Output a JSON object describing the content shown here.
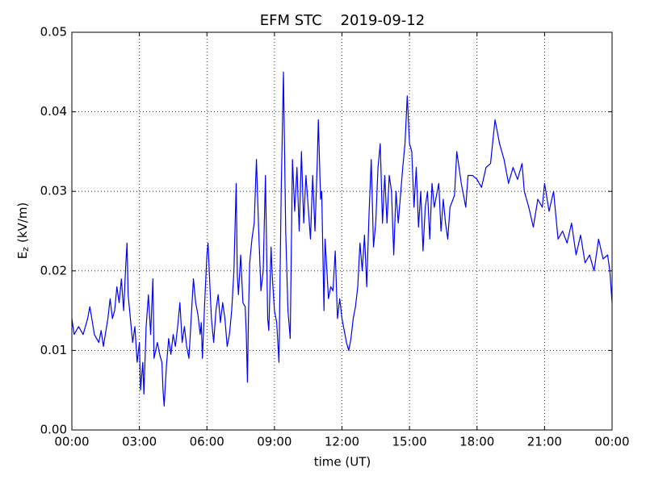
{
  "chart_data": {
    "type": "line",
    "title": "EFM STC    2019-09-12",
    "x_label": "time (UT)",
    "y_label": {
      "main": "E",
      "subscript": "z",
      "unit": "(kV/m)"
    },
    "grid": true,
    "xlim": [
      0,
      24
    ],
    "xticks": [
      {
        "value": 0,
        "label": "00:00"
      },
      {
        "value": 3,
        "label": "03:00"
      },
      {
        "value": 6,
        "label": "06:00"
      },
      {
        "value": 9,
        "label": "09:00"
      },
      {
        "value": 12,
        "label": "12:00"
      },
      {
        "value": 15,
        "label": "15:00"
      },
      {
        "value": 18,
        "label": "18:00"
      },
      {
        "value": 21,
        "label": "21:00"
      },
      {
        "value": 24,
        "label": "00:00"
      }
    ],
    "ylim": [
      0,
      0.05
    ],
    "yticks": [
      {
        "value": 0,
        "label": "0.00"
      },
      0.01,
      0.02,
      0.03,
      0.04,
      0.05
    ],
    "series": [
      {
        "color": "#0000ff",
        "x": [
          0,
          0.1,
          0.3,
          0.5,
          0.7,
          0.8,
          1.0,
          1.2,
          1.3,
          1.4,
          1.6,
          1.7,
          1.8,
          1.9,
          2.0,
          2.1,
          2.2,
          2.3,
          2.4,
          2.45,
          2.5,
          2.6,
          2.7,
          2.8,
          2.9,
          3.0,
          3.05,
          3.15,
          3.2,
          3.3,
          3.4,
          3.5,
          3.6,
          3.65,
          3.8,
          3.9,
          4.0,
          4.05,
          4.1,
          4.2,
          4.3,
          4.4,
          4.5,
          4.6,
          4.7,
          4.8,
          4.9,
          5.0,
          5.1,
          5.2,
          5.3,
          5.4,
          5.5,
          5.6,
          5.7,
          5.75,
          5.8,
          5.9,
          6.0,
          6.05,
          6.15,
          6.2,
          6.3,
          6.4,
          6.5,
          6.6,
          6.7,
          6.8,
          6.9,
          7.0,
          7.1,
          7.2,
          7.3,
          7.35,
          7.4,
          7.5,
          7.6,
          7.7,
          7.75,
          7.8,
          7.85,
          7.9,
          8.0,
          8.1,
          8.2,
          8.3,
          8.4,
          8.5,
          8.6,
          8.7,
          8.75,
          8.85,
          8.9,
          9.0,
          9.1,
          9.2,
          9.3,
          9.4,
          9.5,
          9.6,
          9.7,
          9.8,
          9.9,
          10.0,
          10.1,
          10.2,
          10.3,
          10.4,
          10.5,
          10.6,
          10.7,
          10.8,
          10.9,
          10.95,
          11.05,
          11.1,
          11.2,
          11.25,
          11.4,
          11.5,
          11.6,
          11.7,
          11.8,
          11.9,
          12.0,
          12.2,
          12.3,
          12.4,
          12.5,
          12.6,
          12.7,
          12.8,
          12.9,
          13.0,
          13.1,
          13.2,
          13.3,
          13.4,
          13.5,
          13.6,
          13.7,
          13.8,
          13.9,
          14.0,
          14.1,
          14.2,
          14.3,
          14.4,
          14.5,
          14.7,
          14.8,
          14.9,
          15.0,
          15.1,
          15.2,
          15.3,
          15.4,
          15.5,
          15.6,
          15.7,
          15.8,
          15.9,
          16.0,
          16.1,
          16.3,
          16.4,
          16.5,
          16.6,
          16.7,
          16.8,
          17.0,
          17.1,
          17.3,
          17.5,
          17.6,
          17.8,
          18.0,
          18.2,
          18.4,
          18.6,
          18.8,
          19.0,
          19.2,
          19.4,
          19.6,
          19.8,
          20.0,
          20.1,
          20.3,
          20.5,
          20.7,
          20.9,
          21.0,
          21.2,
          21.4,
          21.6,
          21.8,
          22.0,
          22.2,
          22.4,
          22.6,
          22.8,
          23.0,
          23.2,
          23.4,
          23.6,
          23.8,
          23.9,
          24.0
        ],
        "values": [
          0.014,
          0.012,
          0.013,
          0.012,
          0.014,
          0.0155,
          0.012,
          0.011,
          0.0125,
          0.0105,
          0.014,
          0.0165,
          0.014,
          0.015,
          0.018,
          0.016,
          0.019,
          0.015,
          0.021,
          0.0235,
          0.017,
          0.014,
          0.011,
          0.013,
          0.0085,
          0.011,
          0.005,
          0.0085,
          0.0045,
          0.013,
          0.017,
          0.012,
          0.019,
          0.009,
          0.011,
          0.0095,
          0.0085,
          0.005,
          0.003,
          0.008,
          0.0115,
          0.0095,
          0.012,
          0.0105,
          0.013,
          0.016,
          0.011,
          0.013,
          0.0105,
          0.009,
          0.014,
          0.019,
          0.016,
          0.0145,
          0.012,
          0.0135,
          0.009,
          0.016,
          0.022,
          0.0235,
          0.017,
          0.014,
          0.011,
          0.015,
          0.017,
          0.0135,
          0.016,
          0.014,
          0.0105,
          0.012,
          0.015,
          0.02,
          0.031,
          0.0195,
          0.017,
          0.022,
          0.016,
          0.0155,
          0.012,
          0.006,
          0.015,
          0.021,
          0.024,
          0.026,
          0.034,
          0.025,
          0.0175,
          0.02,
          0.032,
          0.014,
          0.0125,
          0.023,
          0.0195,
          0.015,
          0.0135,
          0.0085,
          0.03,
          0.045,
          0.025,
          0.015,
          0.0115,
          0.034,
          0.0275,
          0.033,
          0.025,
          0.035,
          0.026,
          0.032,
          0.028,
          0.024,
          0.032,
          0.025,
          0.0335,
          0.039,
          0.029,
          0.03,
          0.015,
          0.024,
          0.0165,
          0.018,
          0.0175,
          0.0225,
          0.014,
          0.0165,
          0.014,
          0.011,
          0.01,
          0.0115,
          0.014,
          0.0155,
          0.018,
          0.0235,
          0.02,
          0.0245,
          0.018,
          0.027,
          0.034,
          0.023,
          0.026,
          0.033,
          0.036,
          0.026,
          0.032,
          0.026,
          0.032,
          0.03,
          0.022,
          0.03,
          0.026,
          0.033,
          0.036,
          0.042,
          0.036,
          0.035,
          0.028,
          0.033,
          0.0255,
          0.03,
          0.0225,
          0.028,
          0.03,
          0.024,
          0.031,
          0.028,
          0.031,
          0.025,
          0.029,
          0.026,
          0.024,
          0.028,
          0.0295,
          0.035,
          0.031,
          0.028,
          0.032,
          0.032,
          0.0315,
          0.0305,
          0.033,
          0.0335,
          0.039,
          0.036,
          0.034,
          0.031,
          0.033,
          0.0315,
          0.0335,
          0.03,
          0.028,
          0.0255,
          0.029,
          0.028,
          0.031,
          0.0275,
          0.03,
          0.024,
          0.025,
          0.0235,
          0.026,
          0.022,
          0.0245,
          0.021,
          0.022,
          0.02,
          0.024,
          0.0215,
          0.022,
          0.02,
          0.016
        ]
      }
    ]
  }
}
